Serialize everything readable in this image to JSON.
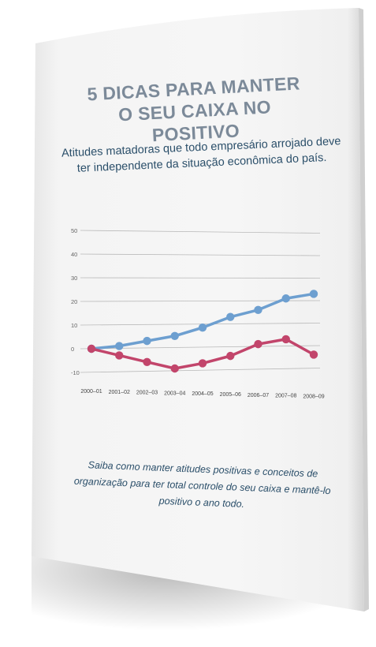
{
  "cover": {
    "title_line1": "5 DICAS PARA MANTER",
    "title_line2": "O SEU CAIXA NO POSITIVO",
    "subtitle": "Atitudes matadoras que todo empresário arrojado deve ter independente da situação econômica do país.",
    "footer": "Saiba como manter atitudes positivas e conceitos de organização para ter total controle do seu caixa e mantê-lo positivo o ano todo."
  },
  "colors": {
    "blue": "#6d9fd0",
    "red": "#c2456b",
    "title": "#7c8a99",
    "text": "#2b4f6a"
  },
  "chart_data": {
    "type": "line",
    "categories": [
      "2000–01",
      "2001–02",
      "2002–03",
      "2003–04",
      "2004–05",
      "2005–06",
      "2006–07",
      "2007–08",
      "2008–09"
    ],
    "yticks": [
      -10,
      0,
      10,
      20,
      30,
      40,
      50
    ],
    "ylim": [
      -10,
      50
    ],
    "series": [
      {
        "values": [
          0,
          1,
          3,
          5,
          8.5,
          13,
          16,
          21,
          23
        ]
      },
      {
        "values": [
          0,
          -3,
          -6,
          -9,
          -7,
          -4,
          1,
          3,
          -4
        ]
      }
    ]
  }
}
